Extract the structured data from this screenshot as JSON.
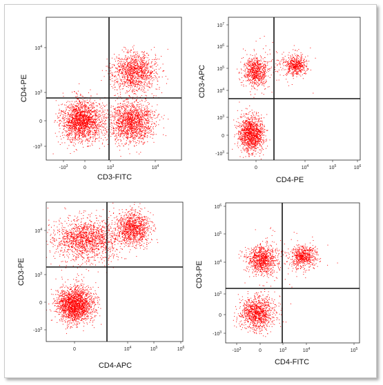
{
  "chart_data": [
    {
      "type": "scatter",
      "xlabel": "CD3-FITC",
      "ylabel": "CD4-PE",
      "x_ticks": [
        {
          "base": "-10",
          "exp": "3"
        },
        {
          "base": "0",
          "exp": ""
        },
        {
          "base": "10",
          "exp": "3"
        },
        {
          "base": "10",
          "exp": "4"
        }
      ],
      "y_ticks": [
        {
          "base": "-10",
          "exp": "3"
        },
        {
          "base": "0",
          "exp": ""
        },
        {
          "base": "10",
          "exp": "3"
        },
        {
          "base": "10",
          "exp": "4"
        }
      ],
      "point_color": "#ff0000",
      "gate": {
        "x": "10^3",
        "y": "10^3"
      },
      "populations": [
        {
          "center": [
            "0",
            "0"
          ],
          "count": 1800
        },
        {
          "center": [
            "10^3.5",
            "0"
          ],
          "count": 1500
        },
        {
          "center": [
            "10^3.6",
            "10^3.7"
          ],
          "count": 1200
        }
      ]
    },
    {
      "type": "scatter",
      "xlabel": "CD4-PE",
      "ylabel": "CD3-APC",
      "x_ticks": [
        {
          "base": "0",
          "exp": ""
        },
        {
          "base": "10",
          "exp": "4"
        },
        {
          "base": "10",
          "exp": "5"
        },
        {
          "base": "10",
          "exp": "6"
        }
      ],
      "y_ticks": [
        {
          "base": "-10",
          "exp": "3"
        },
        {
          "base": "0",
          "exp": ""
        },
        {
          "base": "10",
          "exp": "3"
        },
        {
          "base": "10",
          "exp": "4"
        },
        {
          "base": "10",
          "exp": "5"
        },
        {
          "base": "10",
          "exp": "6"
        },
        {
          "base": "10",
          "exp": "7"
        }
      ],
      "point_color": "#ff0000",
      "gate": {
        "x": "10^3.3",
        "y": "10^4"
      },
      "populations": [
        {
          "center": [
            "0",
            "10^4.8"
          ],
          "count": 700
        },
        {
          "center": [
            "10^3.9",
            "10^5.1"
          ],
          "count": 500
        },
        {
          "center": [
            "0",
            "0"
          ],
          "count": 1300
        }
      ]
    },
    {
      "type": "scatter",
      "xlabel": "CD4-APC",
      "ylabel": "CD3-PE",
      "x_ticks": [
        {
          "base": "0",
          "exp": ""
        },
        {
          "base": "10",
          "exp": "4"
        },
        {
          "base": "10",
          "exp": "5"
        },
        {
          "base": "10",
          "exp": "6"
        }
      ],
      "y_ticks": [
        {
          "base": "-10",
          "exp": "3"
        },
        {
          "base": "0",
          "exp": ""
        },
        {
          "base": "10",
          "exp": "3"
        },
        {
          "base": "10",
          "exp": "4"
        }
      ],
      "point_color": "#ff0000",
      "gate": {
        "x": "10^3.5",
        "y": "10^3.4"
      },
      "populations": [
        {
          "center": [
            "0",
            "10^3.8"
          ],
          "count": 1500
        },
        {
          "center": [
            "10^4.1",
            "10^3.9"
          ],
          "count": 1000
        },
        {
          "center": [
            "0",
            "0"
          ],
          "count": 2000
        }
      ]
    },
    {
      "type": "scatter",
      "xlabel": "CD4-FITC",
      "ylabel": "CD3-PE",
      "x_ticks": [
        {
          "base": "-10",
          "exp": "3"
        },
        {
          "base": "0",
          "exp": ""
        },
        {
          "base": "10",
          "exp": "3"
        },
        {
          "base": "10",
          "exp": "4"
        },
        {
          "base": "10",
          "exp": "5"
        }
      ],
      "y_ticks": [
        {
          "base": "-10",
          "exp": "3"
        },
        {
          "base": "0",
          "exp": ""
        },
        {
          "base": "10",
          "exp": "3"
        },
        {
          "base": "10",
          "exp": "4"
        },
        {
          "base": "10",
          "exp": "5"
        },
        {
          "base": "10",
          "exp": "6"
        }
      ],
      "point_color": "#ff0000",
      "gate": {
        "x": "10^3",
        "y": "10^3.3"
      },
      "populations": [
        {
          "center": [
            "0",
            "10^4"
          ],
          "count": 900
        },
        {
          "center": [
            "10^3.7",
            "10^4.1"
          ],
          "count": 600
        },
        {
          "center": [
            "0",
            "0"
          ],
          "count": 1100
        }
      ]
    }
  ]
}
